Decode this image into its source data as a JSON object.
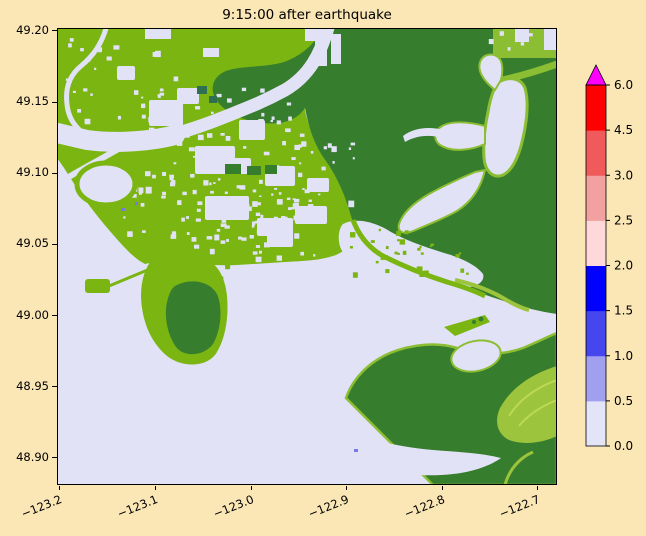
{
  "figure": {
    "title": "9:15:00 after earthquake",
    "background_color": "#fbe7b6"
  },
  "axes": {
    "xlim": [
      -123.203,
      -122.68
    ],
    "ylim": [
      48.881,
      49.202
    ],
    "x_ticks": [
      {
        "label": "−123.2",
        "value": -123.2
      },
      {
        "label": "−123.1",
        "value": -123.1
      },
      {
        "label": "−123.0",
        "value": -123.0
      },
      {
        "label": "−122.9",
        "value": -122.9
      },
      {
        "label": "−122.8",
        "value": -122.8
      },
      {
        "label": "−122.7",
        "value": -122.7
      }
    ],
    "y_ticks": [
      {
        "label": "49.20",
        "value": 49.2
      },
      {
        "label": "49.15",
        "value": 49.15
      },
      {
        "label": "49.10",
        "value": 49.1
      },
      {
        "label": "49.05",
        "value": 49.05
      },
      {
        "label": "49.00",
        "value": 49.0
      },
      {
        "label": "48.95",
        "value": 48.95
      },
      {
        "label": "48.90",
        "value": 48.9
      }
    ]
  },
  "colorbar": {
    "boundaries": [
      0.0,
      0.5,
      1.0,
      1.5,
      2.0,
      2.5,
      3.0,
      4.5,
      6.0
    ],
    "tick_labels": [
      "0.0",
      "0.5",
      "1.0",
      "1.5",
      "2.0",
      "2.5",
      "3.0",
      "4.5",
      "6.0"
    ],
    "segment_colors": [
      "#e4e4f8",
      "#a0a0ef",
      "#4646ee",
      "#0000ff",
      "#ffd9d9",
      "#f2a0a0",
      "#f05a5a",
      "#ff0000"
    ],
    "over_color": "#ff00ff",
    "extend": "max"
  },
  "map_colors": {
    "sea": "#e2e2f7",
    "land_low": "#7ab512",
    "land_slope": "#8cbe33",
    "land_high": "#377d2e",
    "valley": "#9cc43c",
    "valley_bright": "#bcd952",
    "deep_flood": "#7878e8",
    "teal_patch": "#2f6f52"
  },
  "chart_data": {
    "type": "heatmap",
    "title": "9:15:00 after earthquake",
    "xlabel": "",
    "ylabel": "",
    "xlim": [
      -123.203,
      -122.68
    ],
    "ylim": [
      48.881,
      49.202
    ],
    "x_tick_values": [
      -123.2,
      -123.1,
      -123.0,
      -122.9,
      -122.8,
      -122.7
    ],
    "y_tick_values": [
      49.2,
      49.15,
      49.1,
      49.05,
      49.0,
      48.95,
      48.9
    ],
    "grid": false,
    "legend_position": "right",
    "colorbar_boundaries": [
      0.0,
      0.5,
      1.0,
      1.5,
      2.0,
      2.5,
      3.0,
      4.5,
      6.0
    ],
    "colorbar_colors": [
      "#e4e4f8",
      "#a0a0ef",
      "#4646ee",
      "#0000ff",
      "#ffd9d9",
      "#f2a0a0",
      "#f05a5a",
      "#ff0000"
    ],
    "colorbar_over_color": "#ff00ff",
    "colorbar_extend": "max",
    "description": "Pixelated tsunami/flood simulation frame at t = 9:15:00 after the earthquake over the Fraser delta / Boundary Bay region (lon ~ -123.2 to -122.7, lat ~ 48.90 to 49.20). Lavender (lowest colorbar band 0-0.5) is sea and flooded low ground, light green is low-lying land speckled with flooded patches, dark green is higher terrain, yellow-green marks river valleys.",
    "regions": [
      {
        "name": "open-sea-and-boundary-bay",
        "color_key": "sea",
        "lon": [
          -123.2,
          -122.82
        ],
        "lat": [
          48.88,
          49.07
        ],
        "note": "large flat water body filling the lower-left and center-bottom of the map"
      },
      {
        "name": "fraser-delta-lowland",
        "color_key": "land_low",
        "lon": [
          -123.2,
          -122.92
        ],
        "lat": [
          49.07,
          49.2
        ],
        "note": "light green lowland densely speckled with small lavender flooded patches"
      },
      {
        "name": "fraser-river-channel",
        "color_key": "sea",
        "lon": [
          -123.2,
          -122.92
        ],
        "lat": [
          49.1,
          49.2
        ],
        "note": "lavender channel winding from the top edge southwest to the sea, plus smaller sloughs and a ring-shaped slough near the coast"
      },
      {
        "name": "upland-plateau-east",
        "color_key": "land_high",
        "lon": [
          -122.92,
          -122.68
        ],
        "lat": [
          49.05,
          49.2
        ],
        "note": "dark green higher terrain occupying the upper-right portion"
      },
      {
        "name": "flooded-valley-northeast",
        "color_key": "sea",
        "lon": [
          -122.8,
          -122.7
        ],
        "lat": [
          49.09,
          49.18
        ],
        "note": "hook-shaped lavender flooded river valley cut into the dark green upland"
      },
      {
        "name": "mud-bay-estuary",
        "color_key": "sea",
        "lon": [
          -122.9,
          -122.75
        ],
        "lat": [
          49.02,
          49.07
        ],
        "note": "lavender estuary with small green marsh speckles connecting the bay to the flooded valleys"
      },
      {
        "name": "point-roberts-peninsula",
        "color_key": "land_low",
        "lon": [
          -123.11,
          -123.02
        ],
        "lat": [
          48.97,
          49.04
        ],
        "note": "peninsula with light green rim and dark green core jutting into the bay"
      },
      {
        "name": "ferry-jetty-and-terminal",
        "color_key": "land_low",
        "lon": [
          -123.17,
          -123.1
        ],
        "lat": [
          49.02,
          49.04
        ],
        "note": "thin causeway with a square terminal pad extending southwest from the coast"
      },
      {
        "name": "semiahmoo-spit-and-harbor",
        "color_key": "sea",
        "lon": [
          -122.8,
          -122.73
        ],
        "lat": [
          48.95,
          49.0
        ],
        "note": "light green spit enclosing a lavender harbor lagoon on the southeast shore"
      },
      {
        "name": "birch-point-upland",
        "color_key": "land_high",
        "lon": [
          -122.9,
          -122.68
        ],
        "lat": [
          48.93,
          49.0
        ],
        "note": "dark green headland with a point aimed southwest"
      },
      {
        "name": "birch-bay-inlet",
        "color_key": "sea",
        "lon": [
          -122.91,
          -122.74
        ],
        "lat": [
          48.88,
          48.93
        ],
        "note": "lavender inlet wedge between the two southeastern dark green headlands"
      },
      {
        "name": "southeast-valley-fan",
        "color_key": "valley",
        "lon": [
          -122.73,
          -122.68
        ],
        "lat": [
          48.92,
          48.97
        ],
        "note": "broad yellow-green river valley fan reaching the right edge"
      }
    ]
  }
}
